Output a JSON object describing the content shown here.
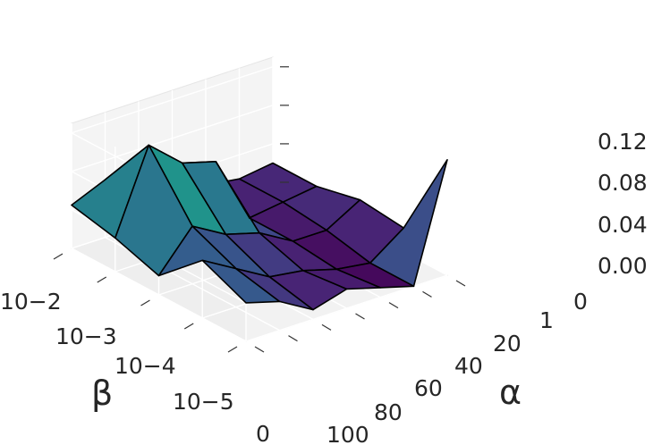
{
  "chart_data": {
    "type": "surface",
    "title": "",
    "xlabel": "α",
    "ylabel": "β",
    "zlabel": "",
    "alpha_values": [
      "0",
      "1",
      "20",
      "40",
      "60",
      "80",
      "100"
    ],
    "beta_values": [
      "10−2",
      "10−3",
      "10−4",
      "10−5",
      "0"
    ],
    "alpha_tick_labels": [
      "0",
      "1",
      "20",
      "40",
      "60",
      "80",
      "100"
    ],
    "beta_tick_labels": [
      "10−2",
      "10−3",
      "10−4",
      "10−5",
      "0"
    ],
    "z_tick_labels": [
      "0.00",
      "0.04",
      "0.08",
      "0.12"
    ],
    "z_ticks": [
      0.0,
      0.04,
      0.08,
      0.12
    ],
    "zlim": [
      0.0,
      0.13
    ],
    "colormap": "viridis",
    "grid": true,
    "z": [
      [
        0.045,
        0.06,
        0.04,
        0.05,
        0.02,
        0.015,
        0.02
      ],
      [
        0.035,
        0.12,
        0.09,
        0.08,
        0.01,
        0.015,
        0.02
      ],
      [
        0.02,
        0.06,
        0.04,
        0.03,
        0.01,
        0.01,
        0.03
      ],
      [
        0.06,
        0.04,
        0.02,
        0.015,
        0.005,
        0.0,
        0.025
      ],
      [
        0.04,
        0.03,
        0.01,
        0.02,
        0.01,
        0.0,
        0.12
      ]
    ],
    "colors": {
      "pane": "#f2f2f2",
      "grid": "#ffffff",
      "edge": "#000000",
      "text": "#262626"
    }
  }
}
